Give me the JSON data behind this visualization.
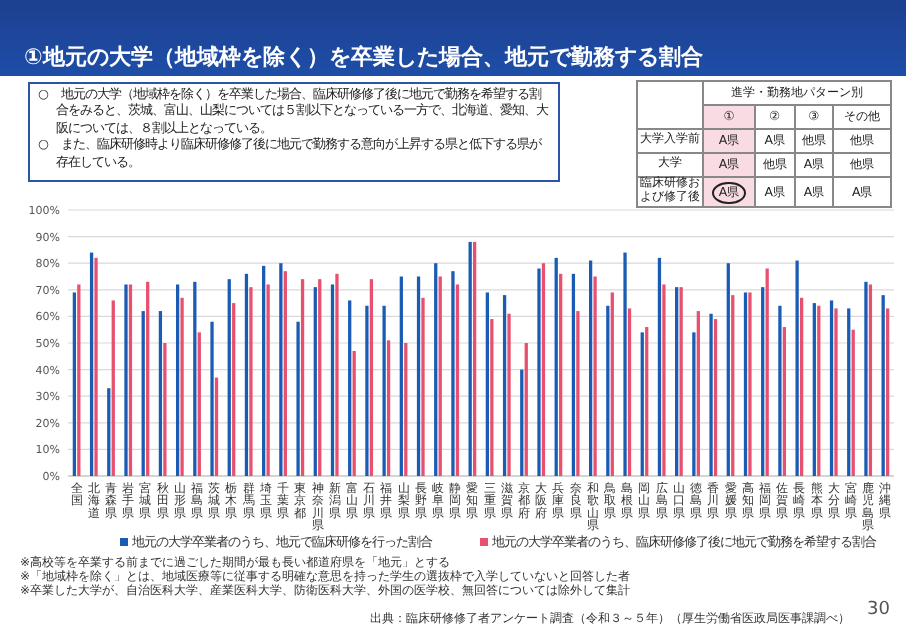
{
  "chart_data": [
    {
      "type": "bar",
      "title": "①地元の大学（地域枠を除く）を卒業した場合、地元で勤務する割合",
      "categories": [
        "全国",
        "北海道",
        "青森県",
        "岩手県",
        "宮城県",
        "秋田県",
        "山形県",
        "福島県",
        "茨城県",
        "栃木県",
        "群馬県",
        "埼玉県",
        "千葉県",
        "東京都",
        "神奈川県",
        "新潟県",
        "富山県",
        "石川県",
        "福井県",
        "山梨県",
        "長野県",
        "岐阜県",
        "静岡県",
        "愛知県",
        "三重県",
        "滋賀県",
        "京都府",
        "大阪府",
        "兵庫県",
        "奈良県",
        "和歌山県",
        "鳥取県",
        "島根県",
        "岡山県",
        "広島県",
        "山口県",
        "徳島県",
        "香川県",
        "愛媛県",
        "高知県",
        "福岡県",
        "佐賀県",
        "長崎県",
        "熊本県",
        "大分県",
        "宮崎県",
        "鹿児島県",
        "沖縄県"
      ],
      "series": [
        {
          "name": "地元の大学卒業者のうち、地元で臨床研修を行った割合",
          "color": "#1a5cb4",
          "values": [
            69,
            84,
            33,
            72,
            62,
            62,
            72,
            73,
            58,
            74,
            76,
            79,
            80,
            58,
            71,
            72,
            66,
            64,
            64,
            75,
            75,
            80,
            77,
            88,
            69,
            68,
            40,
            78,
            82,
            76,
            81,
            64,
            84,
            54,
            82,
            71,
            54,
            61,
            80,
            69,
            71,
            64,
            81,
            65,
            66,
            63,
            73,
            68
          ]
        },
        {
          "name": "地元の大学卒業者のうち、臨床研修修了後に地元で勤務を希望する割合",
          "color": "#e8506f",
          "values": [
            72,
            82,
            66,
            72,
            73,
            50,
            67,
            54,
            37,
            65,
            71,
            72,
            77,
            74,
            74,
            76,
            47,
            74,
            51,
            50,
            67,
            75,
            72,
            88,
            59,
            61,
            50,
            80,
            76,
            62,
            75,
            69,
            63,
            56,
            72,
            71,
            62,
            59,
            68,
            69,
            78,
            56,
            67,
            64,
            63,
            55,
            72,
            63
          ]
        }
      ],
      "ylim": [
        0,
        100
      ],
      "yticks": [
        {
          "value": 0,
          "label": "0%"
        },
        {
          "value": 10,
          "label": "10%"
        },
        {
          "value": 20,
          "label": "20%"
        },
        {
          "value": 30,
          "label": "30%"
        },
        {
          "value": 40,
          "label": "40%"
        },
        {
          "value": 50,
          "label": "50%"
        },
        {
          "value": 60,
          "label": "60%"
        },
        {
          "value": 70,
          "label": "70%"
        },
        {
          "value": 80,
          "label": "80%"
        },
        {
          "value": 90,
          "label": "90%"
        },
        {
          "value": 100,
          "label": "100%"
        }
      ],
      "grid": "y",
      "legend": "bottom",
      "annotations": [
        "○　地元の大学（地域枠を除く）を卒業した場合、臨床研修修了後に地元で勤務を希望する割合をみると、茨城、富山、山梨については５割以下となっている一方で、北海道、愛知、大阪については、８割以上となっている。",
        "○　また、臨床研修時より臨床研修修了後に地元で勤務する意向が上昇する県と低下する県が存在している。",
        "※高校等を卒業する前までに過ごした期間が最も長い都道府県を「地元」とする",
        "※「地域枠を除く」とは、地域医療等に従事する明確な意思を持った学生の選抜枠で入学していないと回答した者",
        "※卒業した大学が、自治医科大学、産業医科大学、防衛医科大学、外国の医学校、無回答については除外して集計",
        "出典：臨床研修修了者アンケート調査（令和３～５年）（厚生労働省医政局医事課調べ）",
        "30"
      ]
    },
    {
      "type": "other",
      "title": "進学・勤務地パターン別",
      "categories": [
        "①",
        "②",
        "③",
        "その他"
      ],
      "y_categories": [
        "大学入学前",
        "大学",
        "臨床研修および修了後"
      ],
      "annotations": [
        "A県",
        "A県",
        "他県",
        "他県",
        "A県",
        "他県",
        "A県",
        "他県",
        "A県",
        "A県",
        "A県",
        "A県"
      ]
    }
  ]
}
